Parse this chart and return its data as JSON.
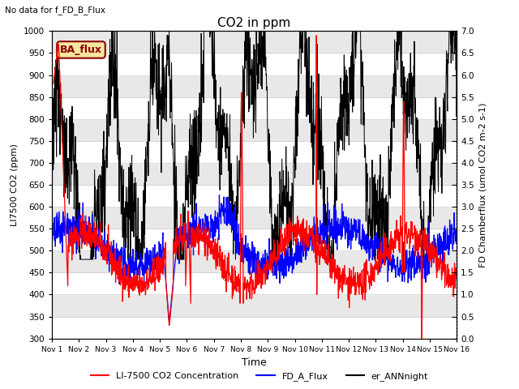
{
  "title": "CO2 in ppm",
  "top_left_text": "No data for f_FD_B_Flux",
  "legend_box_text": "BA_flux",
  "xlabel": "Time",
  "ylabel_left": "LI7500 CO2 (ppm)",
  "ylabel_right": "FD Chamberflux (umol CO2 m-2 s-1)",
  "ylim_left": [
    300,
    1000
  ],
  "ylim_right": [
    0.0,
    7.0
  ],
  "yticks_left": [
    300,
    350,
    400,
    450,
    500,
    550,
    600,
    650,
    700,
    750,
    800,
    850,
    900,
    950,
    1000
  ],
  "yticks_right": [
    0.0,
    0.5,
    1.0,
    1.5,
    2.0,
    2.5,
    3.0,
    3.5,
    4.0,
    4.5,
    5.0,
    5.5,
    6.0,
    6.5,
    7.0
  ],
  "xtick_labels": [
    "Nov 1",
    "Nov 2",
    "Nov 3",
    "Nov 4",
    "Nov 5",
    "Nov 6",
    "Nov 7",
    "Nov 8",
    "Nov 9",
    "Nov 10",
    "Nov 11",
    "Nov 12",
    "Nov 13",
    "Nov 14",
    "Nov 15",
    "Nov 16"
  ],
  "color_red": "#ff0000",
  "color_blue": "#0000ff",
  "color_black": "#000000",
  "legend_labels": [
    "LI-7500 CO2 Concentration",
    "FD_A_Flux",
    "er_ANNnight"
  ],
  "bg_gray": "#e8e8e8",
  "bg_white": "#ffffff",
  "seed": 42,
  "n_points": 1500
}
